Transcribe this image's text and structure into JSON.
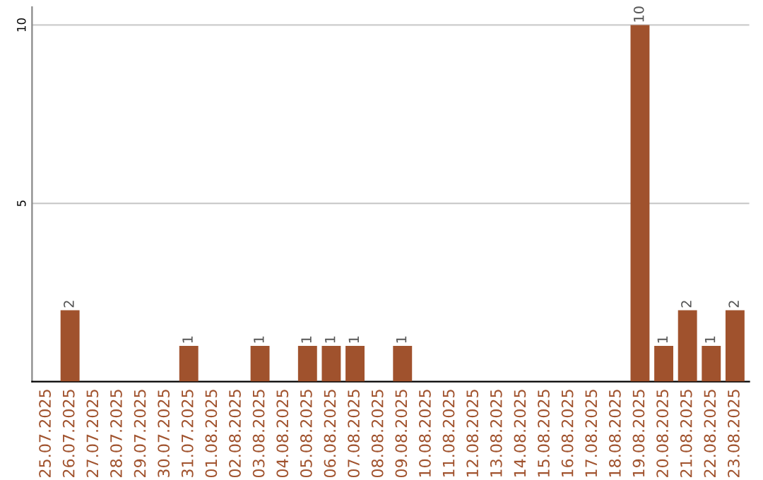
{
  "chart_data": {
    "type": "bar",
    "categories": [
      "25.07.2025",
      "26.07.2025",
      "27.07.2025",
      "28.07.2025",
      "29.07.2025",
      "30.07.2025",
      "31.07.2025",
      "01.08.2025",
      "02.08.2025",
      "03.08.2025",
      "04.08.2025",
      "05.08.2025",
      "06.08.2025",
      "07.08.2025",
      "08.08.2025",
      "09.08.2025",
      "10.08.2025",
      "11.08.2025",
      "12.08.2025",
      "13.08.2025",
      "14.08.2025",
      "15.08.2025",
      "16.08.2025",
      "17.08.2025",
      "18.08.2025",
      "19.08.2025",
      "20.08.2025",
      "21.08.2025",
      "22.08.2025",
      "23.08.2025"
    ],
    "values": [
      0,
      2,
      0,
      0,
      0,
      0,
      1,
      0,
      0,
      1,
      0,
      1,
      1,
      1,
      0,
      1,
      0,
      0,
      0,
      0,
      0,
      0,
      0,
      0,
      0,
      10,
      1,
      2,
      1,
      2
    ],
    "value_labels": [
      null,
      "2",
      null,
      null,
      null,
      null,
      "1",
      null,
      null,
      "1",
      null,
      "1",
      "1",
      "1",
      null,
      "1",
      null,
      null,
      null,
      null,
      null,
      null,
      null,
      null,
      null,
      "10",
      "1",
      "2",
      "1",
      "2"
    ],
    "color": "#a0522d",
    "ylim": [
      0,
      10.5
    ],
    "yticks": [
      5,
      10
    ],
    "grid": "y"
  }
}
